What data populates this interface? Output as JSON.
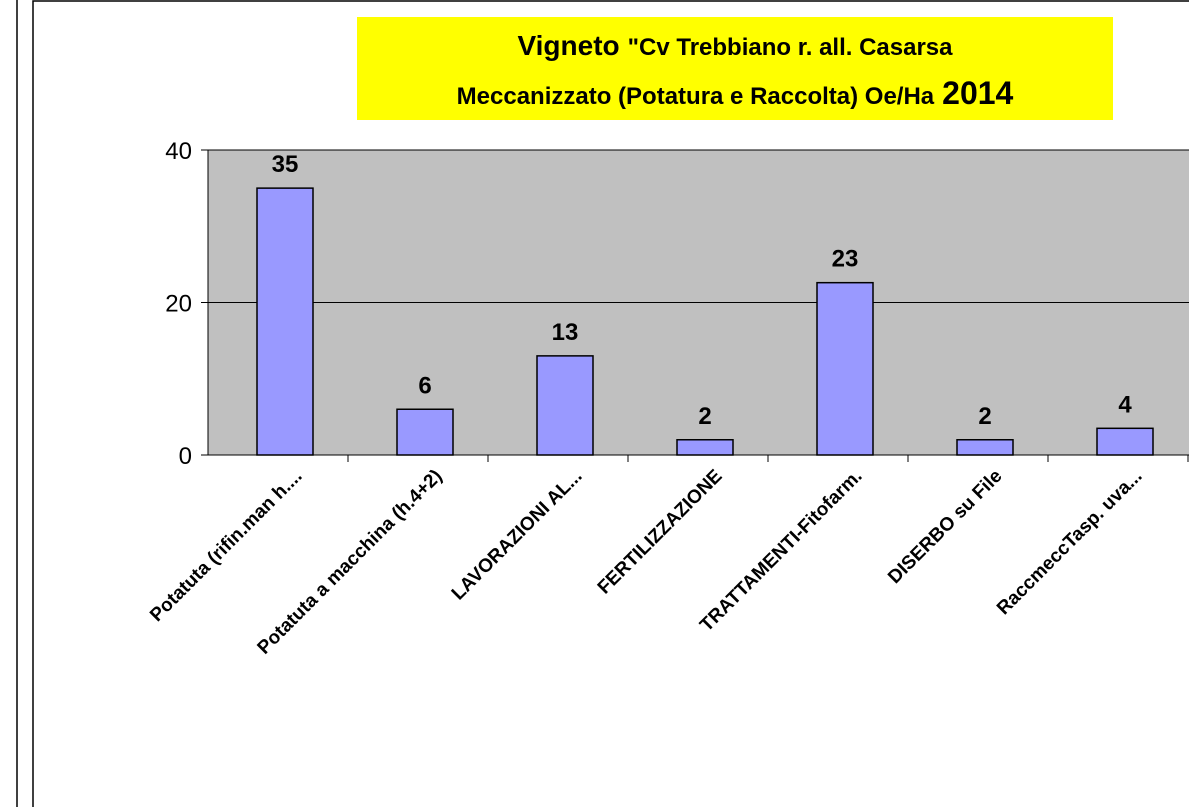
{
  "chart_data": {
    "type": "bar",
    "title_parts": [
      "Vigneto",
      "\"Cv Trebbiano r. all. Casarsa",
      "Meccanizzato (Potatura e Raccolta) Oe/Ha",
      "2014"
    ],
    "categories": [
      "Potatuta (rifin.man h....",
      "Potatuta a macchina (h.4+2)",
      "LAVORAZIONI AL...",
      "FERTILIZZAZIONE",
      "TRATTAMENTI-Fitofarm.",
      "DISERBO  su File",
      "RaccmeccTasp. uva..."
    ],
    "values": [
      35,
      6,
      13,
      2,
      22.6,
      2,
      3.5
    ],
    "value_labels": [
      "35",
      "6",
      "13",
      "2",
      "23",
      "2",
      "4"
    ],
    "color": "#9999ff",
    "ylim": [
      0,
      40
    ],
    "yticks": [
      0,
      20,
      40
    ],
    "grid": true
  }
}
